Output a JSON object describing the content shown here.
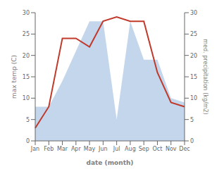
{
  "chart_data": {
    "type": "line",
    "xlabel": "date (month)",
    "ylabel": "max temp (C)",
    "y2label": "med. precipitation (kg/m2)",
    "categories": [
      "Jan",
      "Feb",
      "Mar",
      "Apr",
      "May",
      "Jun",
      "Jul",
      "Aug",
      "Sep",
      "Oct",
      "Nov",
      "Dec"
    ],
    "series": [
      {
        "type": "area",
        "axis": "y2",
        "color": "#b8cfe8",
        "values": [
          8,
          8,
          14,
          21,
          28,
          28,
          5,
          28,
          19,
          19,
          10,
          9
        ]
      },
      {
        "type": "line",
        "axis": "y",
        "color": "#c0392b",
        "values": [
          3,
          8,
          24,
          24,
          22,
          28,
          29,
          28,
          28,
          16,
          9,
          8
        ]
      }
    ],
    "ylim": [
      0,
      30
    ],
    "yticks": [
      0,
      5,
      10,
      15,
      20,
      25,
      30
    ],
    "y2lim": [
      0,
      30
    ],
    "y2ticks": [
      0,
      5,
      10,
      15,
      20,
      25,
      30
    ],
    "grid": false
  }
}
